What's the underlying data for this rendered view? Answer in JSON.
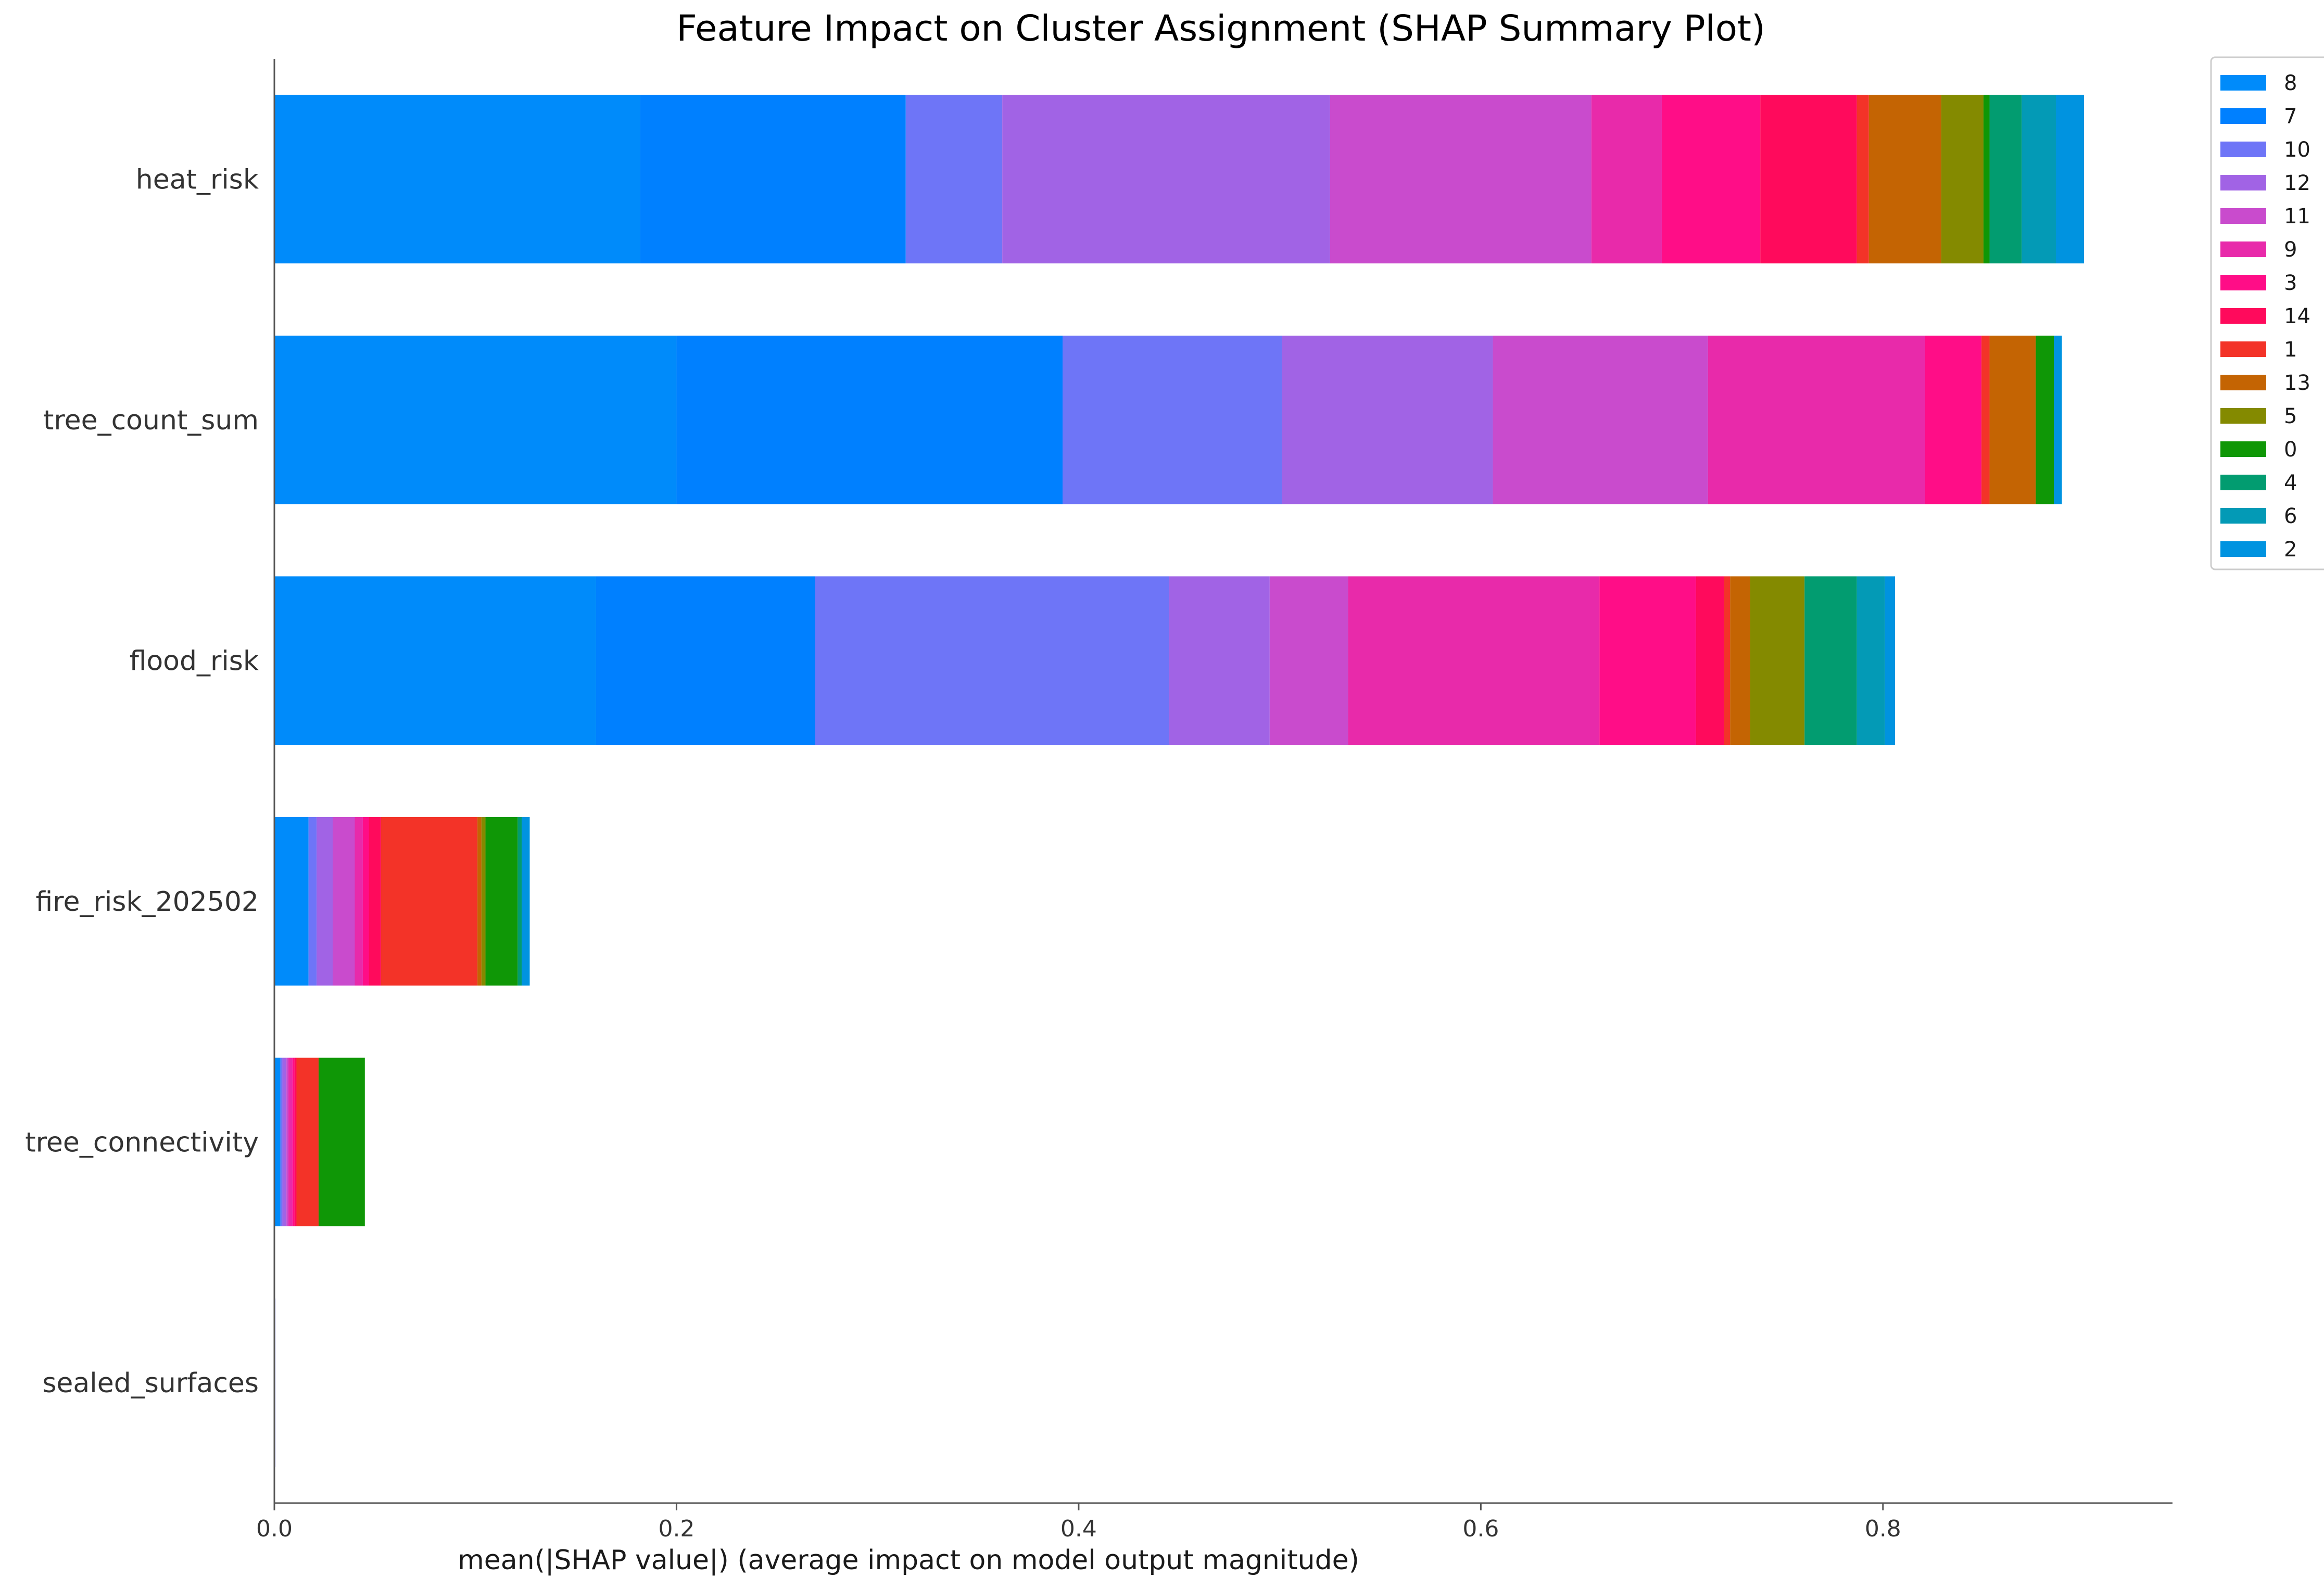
{
  "chart_data": {
    "type": "bar",
    "orientation": "horizontal",
    "stacked": true,
    "title": "Feature Impact on Cluster Assignment (SHAP Summary Plot)",
    "xlabel": "mean(|SHAP value|) (average impact on model output magnitude)",
    "ylabel": "",
    "xlim": [
      0,
      0.944
    ],
    "xticks": [
      0.0,
      0.2,
      0.4,
      0.6,
      0.8
    ],
    "xtick_labels": [
      "0.0",
      "0.2",
      "0.4",
      "0.6",
      "0.8"
    ],
    "grid": false,
    "legend_position": "top-right",
    "categories": [
      "heat_risk",
      "tree_count_sum",
      "flood_risk",
      "fire_risk_202502",
      "tree_connectivity",
      "sealed_surfaces"
    ],
    "series": [
      {
        "name": "8",
        "color": "#008bfa",
        "values": [
          0.182,
          0.2,
          0.16,
          0.017,
          0.003,
          0.0
        ]
      },
      {
        "name": "7",
        "color": "#0080ff",
        "values": [
          0.132,
          0.192,
          0.109,
          0.0,
          0.0,
          0.0
        ]
      },
      {
        "name": "10",
        "color": "#6e75f7",
        "values": [
          0.048,
          0.109,
          0.176,
          0.004,
          0.001,
          0.0005
        ]
      },
      {
        "name": "12",
        "color": "#a163e5",
        "values": [
          0.163,
          0.105,
          0.05,
          0.008,
          0.002,
          0.0
        ]
      },
      {
        "name": "11",
        "color": "#c94bcd",
        "values": [
          0.13,
          0.107,
          0.039,
          0.011,
          0.001,
          0.0
        ]
      },
      {
        "name": "9",
        "color": "#e82aaa",
        "values": [
          0.035,
          0.108,
          0.125,
          0.004,
          0.002,
          0.0
        ]
      },
      {
        "name": "3",
        "color": "#ff0d87",
        "values": [
          0.049,
          0.028,
          0.048,
          0.003,
          0.001,
          0.0
        ]
      },
      {
        "name": "14",
        "color": "#ff0a5c",
        "values": [
          0.048,
          0.0,
          0.014,
          0.006,
          0.001,
          0.0
        ]
      },
      {
        "name": "1",
        "color": "#f33328",
        "values": [
          0.006,
          0.004,
          0.003,
          0.048,
          0.011,
          0.0
        ]
      },
      {
        "name": "13",
        "color": "#c46403",
        "values": [
          0.036,
          0.023,
          0.01,
          0.002,
          0.0,
          0.0
        ]
      },
      {
        "name": "5",
        "color": "#848a00",
        "values": [
          0.021,
          0.0,
          0.027,
          0.002,
          0.0,
          0.0
        ]
      },
      {
        "name": "0",
        "color": "#0f9706",
        "values": [
          0.003,
          0.009,
          0.0,
          0.016,
          0.023,
          0.0
        ]
      },
      {
        "name": "4",
        "color": "#029c70",
        "values": [
          0.016,
          0.0,
          0.026,
          0.002,
          0.0,
          0.0
        ]
      },
      {
        "name": "6",
        "color": "#039ab6",
        "values": [
          0.017,
          0.0,
          0.014,
          0.0,
          0.0,
          0.0
        ]
      },
      {
        "name": "2",
        "color": "#0093e0",
        "values": [
          0.014,
          0.004,
          0.005,
          0.004,
          0.0,
          0.0
        ]
      }
    ]
  }
}
